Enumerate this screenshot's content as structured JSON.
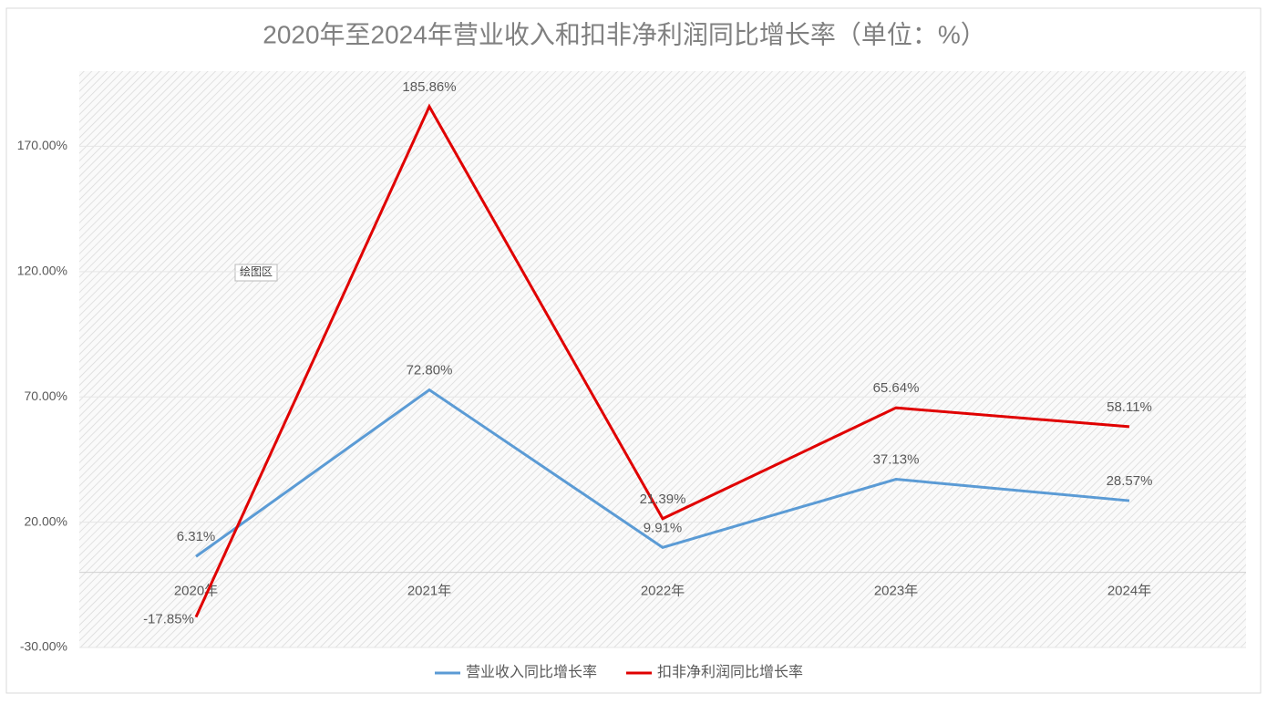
{
  "chart_data": {
    "type": "line",
    "title": "2020年至2024年营业收入和扣非净利润同比增长率（单位：%）",
    "annotation": "绘图区",
    "categories": [
      "2020年",
      "2021年",
      "2022年",
      "2023年",
      "2024年"
    ],
    "series": [
      {
        "name": "营业收入同比增长率",
        "color": "#5b9bd5",
        "values": [
          6.31,
          72.8,
          9.91,
          37.13,
          28.57
        ],
        "value_labels": [
          "6.31%",
          "72.80%",
          "9.91%",
          "37.13%",
          "28.57%"
        ]
      },
      {
        "name": "扣非净利润同比增长率",
        "color": "#e00000",
        "values": [
          -17.85,
          185.86,
          21.39,
          65.64,
          58.11
        ],
        "value_labels": [
          "-17.85%",
          "185.86%",
          "21.39%",
          "65.64%",
          "58.11%"
        ]
      }
    ],
    "ylim": [
      -30,
      200
    ],
    "yticks": [
      {
        "value": -30,
        "label": "-30.00%"
      },
      {
        "value": 20,
        "label": "20.00%"
      },
      {
        "value": 70,
        "label": "70.00%"
      },
      {
        "value": 120,
        "label": "120.00%"
      },
      {
        "value": 170,
        "label": "170.00%"
      }
    ],
    "grid": true,
    "legend": "bottom"
  }
}
